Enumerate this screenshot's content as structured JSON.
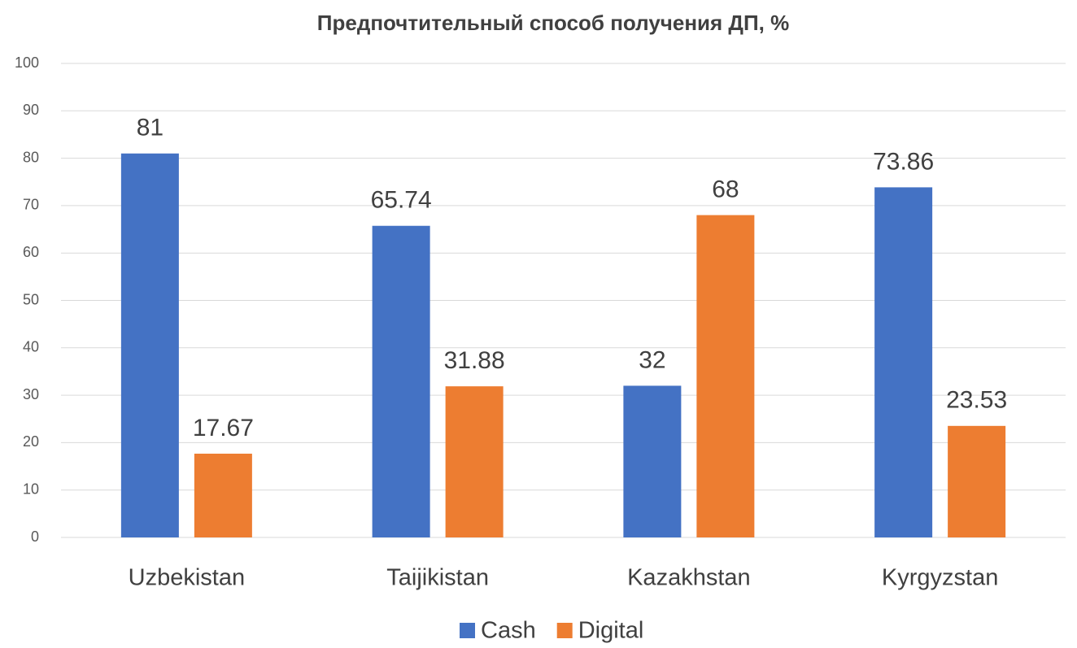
{
  "chart_data": {
    "type": "bar",
    "title": "Предпочтительный способ получения ДП, %",
    "categories": [
      "Uzbekistan",
      "Taijikistan",
      "Kazakhstan",
      "Kyrgyzstan"
    ],
    "series": [
      {
        "name": "Cash",
        "color": "#4472c4",
        "values": [
          81,
          65.74,
          32,
          73.86
        ]
      },
      {
        "name": "Digital",
        "color": "#ed7d31",
        "values": [
          17.67,
          31.88,
          68,
          23.53
        ]
      }
    ],
    "ylim": [
      0,
      100
    ],
    "yticks": [
      0,
      10,
      20,
      30,
      40,
      50,
      60,
      70,
      80,
      90,
      100
    ],
    "grid": true,
    "legend": "bottom",
    "data_labels": true
  }
}
